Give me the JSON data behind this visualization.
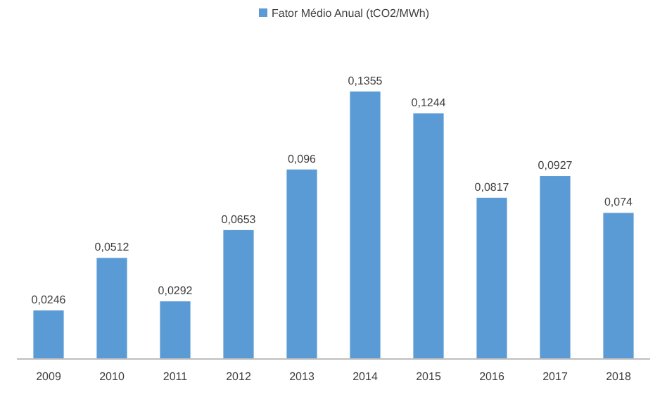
{
  "chart_data": {
    "type": "bar",
    "categories": [
      "2009",
      "2010",
      "2011",
      "2012",
      "2013",
      "2014",
      "2015",
      "2016",
      "2017",
      "2018"
    ],
    "series": [
      {
        "name": "Fator Médio Anual (tCO2/MWh)",
        "color": "#5b9bd5",
        "values": [
          0.0246,
          0.0512,
          0.0292,
          0.0653,
          0.096,
          0.1355,
          0.1244,
          0.0817,
          0.0927,
          0.074
        ],
        "value_labels": [
          "0,0246",
          "0,0512",
          "0,0292",
          "0,0653",
          "0,096",
          "0,1355",
          "0,1244",
          "0,0817",
          "0,0927",
          "0,074"
        ]
      }
    ],
    "legend": "top",
    "grid": false
  }
}
